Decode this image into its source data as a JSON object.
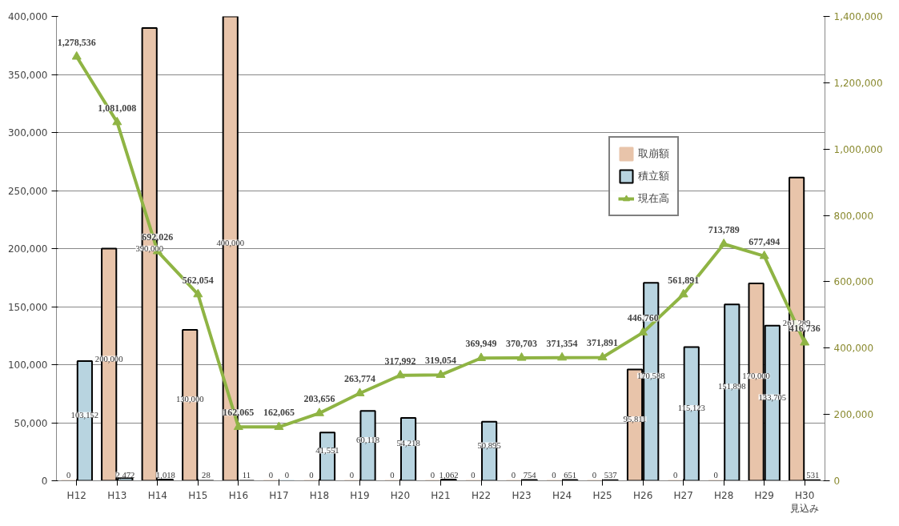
{
  "chart_data": {
    "type": "bar",
    "categories": [
      "H12",
      "H13",
      "H14",
      "H15",
      "H16",
      "H17",
      "H18",
      "H19",
      "H20",
      "H21",
      "H22",
      "H23",
      "H24",
      "H25",
      "H26",
      "H27",
      "H28",
      "H29",
      "H30\n見込み"
    ],
    "series": [
      {
        "name": "取崩額",
        "color": "#e8c4aa",
        "values": [
          0,
          200000,
          390000,
          130000,
          400000,
          0,
          0,
          0,
          0,
          0,
          0,
          0,
          0,
          0,
          95811,
          0,
          0,
          170000,
          261289
        ],
        "value_labels": [
          "0",
          "200,000",
          "390,000",
          "130,000",
          "400,000",
          "0",
          "0",
          "0",
          "0",
          "0",
          "0",
          "0",
          "0",
          "0",
          "95,811",
          "0",
          "0",
          "170,000",
          "261,289"
        ]
      },
      {
        "name": "積立額",
        "color": "#b8d4e0",
        "values": [
          103152,
          2472,
          1018,
          28,
          11,
          0,
          41551,
          60118,
          54218,
          1062,
          50895,
          754,
          651,
          537,
          170588,
          115123,
          151898,
          133705,
          531
        ],
        "value_labels": [
          "103,152",
          "2,472",
          "1,018",
          "28",
          "11",
          "0",
          "41,551",
          "60,118",
          "54,218",
          "1,062",
          "50,895",
          "754",
          "651",
          "537",
          "170,588",
          "115,123",
          "151,898",
          "133,705",
          "531"
        ]
      },
      {
        "name": "現在高",
        "type": "line",
        "axis": "y2",
        "color": "#8fb444",
        "marker": "triangle",
        "values": [
          1278536,
          1081008,
          692026,
          562054,
          162065,
          162065,
          203656,
          263774,
          317992,
          319054,
          369949,
          370703,
          371354,
          371891,
          446760,
          561891,
          713789,
          677494,
          416736
        ],
        "value_labels": [
          "1,278,536",
          "1,081,008",
          "692,026",
          "562,054",
          "162,065",
          "162,065",
          "203,656",
          "263,774",
          "317,992",
          "319,054",
          "369,949",
          "370,703",
          "371,354",
          "371,891",
          "446,760",
          "561,891",
          "713,789",
          "677,494",
          "416,736"
        ]
      }
    ],
    "ylim": [
      0,
      400000
    ],
    "yticks": [
      {
        "value": 0,
        "label": "0"
      },
      {
        "value": 50000,
        "label": "50,000"
      },
      {
        "value": 100000,
        "label": "100,000"
      },
      {
        "value": 150000,
        "label": "150,000"
      },
      {
        "value": 200000,
        "label": "200,000"
      },
      {
        "value": 250000,
        "label": "250,000"
      },
      {
        "value": 300000,
        "label": "300,000"
      },
      {
        "value": 350000,
        "label": "350,000"
      },
      {
        "value": 400000,
        "label": "400,000"
      }
    ],
    "y2lim": [
      0,
      1400000
    ],
    "y2ticks": [
      {
        "value": 0,
        "label": "0"
      },
      {
        "value": 200000,
        "label": "200,000"
      },
      {
        "value": 400000,
        "label": "400,000"
      },
      {
        "value": 600000,
        "label": "600,000"
      },
      {
        "value": 800000,
        "label": "800,000"
      },
      {
        "value": 1000000,
        "label": "1,000,000"
      },
      {
        "value": 1200000,
        "label": "1,200,000"
      },
      {
        "value": 1400000,
        "label": "1,400,000"
      }
    ],
    "grid": "y",
    "legend": "top right"
  }
}
